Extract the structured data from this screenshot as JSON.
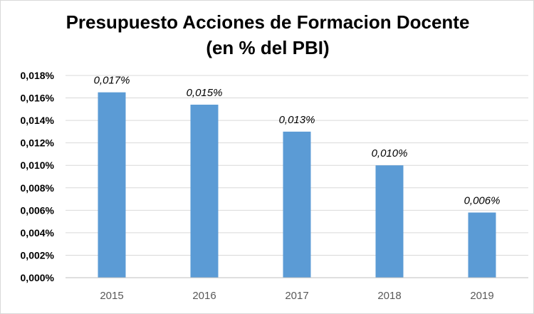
{
  "chart_data": {
    "type": "bar",
    "title": "Presupuesto Acciones de Formacion Docente",
    "subtitle": "(en % del PBI)",
    "categories": [
      "2015",
      "2016",
      "2017",
      "2018",
      "2019"
    ],
    "values": [
      0.0165,
      0.0154,
      0.013,
      0.01,
      0.0058
    ],
    "data_labels": [
      "0,017%",
      "0,015%",
      "0,013%",
      "0,010%",
      "0,006%"
    ],
    "ylim": [
      0,
      0.018
    ],
    "yticks": [
      0,
      0.002,
      0.004,
      0.006,
      0.008,
      0.01,
      0.012,
      0.014,
      0.016,
      0.018
    ],
    "ytick_labels": [
      "0,000%",
      "0,002%",
      "0,004%",
      "0,006%",
      "0,008%",
      "0,010%",
      "0,012%",
      "0,014%",
      "0,016%",
      "0,018%"
    ],
    "xlabel": "",
    "ylabel": "",
    "grid": true,
    "legend": false,
    "bar_color": "#5b9bd5",
    "grid_color": "#d9d9d9"
  }
}
